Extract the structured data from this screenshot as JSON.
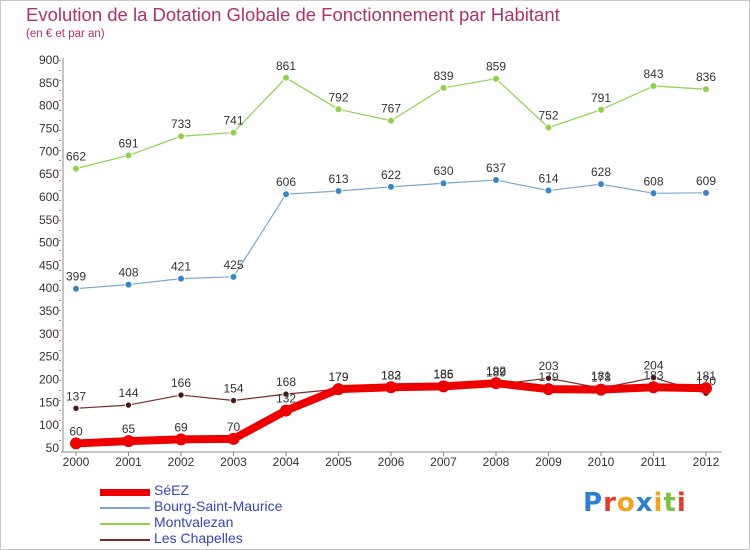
{
  "title": "Evolution de la Dotation Globale de Fonctionnement par Habitant",
  "subtitle": "(en € et par an)",
  "logo": {
    "text": "Proxiti",
    "letters": [
      "P",
      "r",
      "o",
      "x",
      "i",
      "t",
      "i"
    ],
    "colors": [
      "#2f7fd1",
      "#e23a2e",
      "#f3a21b",
      "#2f7fd1",
      "#f3a21b",
      "#7cc142",
      "#e23a2e"
    ]
  },
  "chart_data": {
    "type": "line",
    "title": "Evolution de la Dotation Globale de Fonctionnement par Habitant",
    "ylabel": "(en € et par an)",
    "xlabel": "",
    "ylim": [
      50,
      900
    ],
    "yticks": [
      50,
      100,
      150,
      200,
      250,
      300,
      350,
      400,
      450,
      500,
      550,
      600,
      650,
      700,
      750,
      800,
      850,
      900
    ],
    "grid": false,
    "legend_position": "bottom-left",
    "categories": [
      "2000",
      "2001",
      "2002",
      "2003",
      "2004",
      "2005",
      "2006",
      "2007",
      "2008",
      "2009",
      "2010",
      "2011",
      "2012"
    ],
    "series": [
      {
        "name": "Montvalezan",
        "color": "#8fd14f",
        "markerFill": "#8fd14f",
        "width": 1.2,
        "markerRadius": 3.5,
        "values": [
          662,
          691,
          733,
          741,
          861,
          792,
          767,
          839,
          859,
          752,
          791,
          843,
          836
        ]
      },
      {
        "name": "Bourg-Saint-Maurice",
        "color": "#7aa7cf",
        "markerFill": "#3a85c8",
        "width": 1.2,
        "markerRadius": 3.5,
        "values": [
          399,
          408,
          421,
          425,
          606,
          613,
          622,
          630,
          637,
          614,
          628,
          608,
          609
        ]
      },
      {
        "name": "Les Chapelles",
        "color": "#7a2a2a",
        "markerFill": "#4a1515",
        "width": 1.2,
        "markerRadius": 3.2,
        "values": [
          137,
          144,
          166,
          154,
          168,
          179,
          182,
          186,
          189,
          203,
          181,
          204,
          170
        ]
      },
      {
        "name": "SéEZ",
        "color": "#ee0000",
        "markerFill": "#ee0000",
        "width": 8,
        "markerRadius": 6,
        "values": [
          60,
          65,
          69,
          70,
          132,
          179,
          183,
          185,
          192,
          179,
          178,
          183,
          181
        ]
      }
    ],
    "legend": [
      "SéEZ",
      "Bourg-Saint-Maurice",
      "Montvalezan",
      "Les Chapelles"
    ]
  }
}
